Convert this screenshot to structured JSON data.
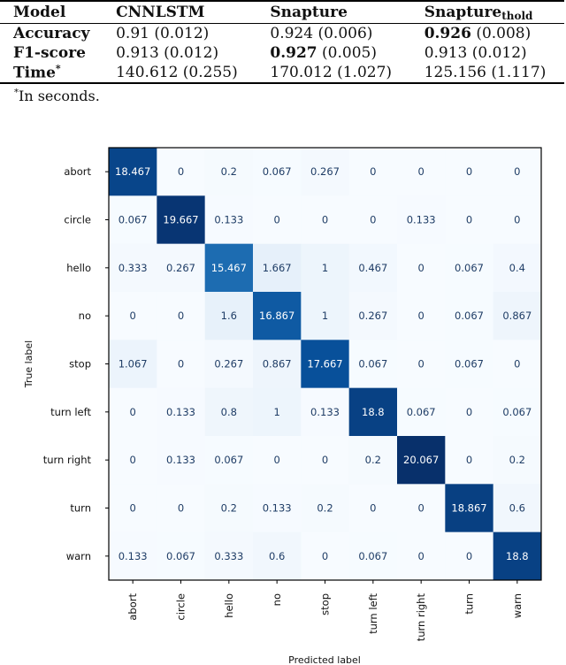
{
  "table": {
    "headers": [
      "Model",
      "CNNLSTM",
      "Snapture",
      "Snapture",
      "thold"
    ],
    "rows": [
      {
        "metric": "Accuracy",
        "cnnlstm": "0.91 (0.012)",
        "snapture": "0.924 (0.006)",
        "snapture_best": "",
        "thold_best": "0.926",
        "thold_rest": " (0.008)"
      },
      {
        "metric": "F1-score",
        "cnnlstm": "0.913 (0.012)",
        "snapture_best": "0.927",
        "snapture_rest": " (0.005)",
        "thold": "0.913 (0.012)"
      },
      {
        "metric": "Time",
        "metric_sup": "*",
        "cnnlstm": "140.612 (0.255)",
        "snapture": "170.012 (1.027)",
        "thold": "125.156 (1.117)"
      }
    ],
    "footnote_mark": "*",
    "footnote": "In seconds."
  },
  "chart_data": {
    "type": "heatmap",
    "title": "",
    "xlabel": "Predicted label",
    "ylabel": "True label",
    "x_categories": [
      "abort",
      "circle",
      "hello",
      "no",
      "stop",
      "turn left",
      "turn right",
      "turn",
      "warn"
    ],
    "y_categories": [
      "abort",
      "circle",
      "hello",
      "no",
      "stop",
      "turn left",
      "turn right",
      "turn",
      "warn"
    ],
    "values": [
      [
        18.467,
        0,
        0.2,
        0.067,
        0.267,
        0,
        0,
        0,
        0
      ],
      [
        0.067,
        19.667,
        0.133,
        0,
        0,
        0,
        0.133,
        0,
        0
      ],
      [
        0.333,
        0.267,
        15.467,
        1.667,
        1,
        0.467,
        0,
        0.067,
        0.4
      ],
      [
        0,
        0,
        1.6,
        16.867,
        1,
        0.267,
        0,
        0.067,
        0.867
      ],
      [
        1.067,
        0,
        0.267,
        0.867,
        17.667,
        0.067,
        0,
        0.067,
        0
      ],
      [
        0,
        0.133,
        0.8,
        1,
        0.133,
        18.8,
        0.067,
        0,
        0.067
      ],
      [
        0,
        0.133,
        0.067,
        0,
        0,
        0.2,
        20.067,
        0,
        0.2
      ],
      [
        0,
        0,
        0.2,
        0.133,
        0.2,
        0,
        0,
        18.867,
        0.6
      ],
      [
        0.133,
        0.067,
        0.333,
        0.6,
        0,
        0.067,
        0,
        0,
        18.8
      ]
    ],
    "value_range": [
      0,
      20.067
    ],
    "colormap": "Blues"
  }
}
